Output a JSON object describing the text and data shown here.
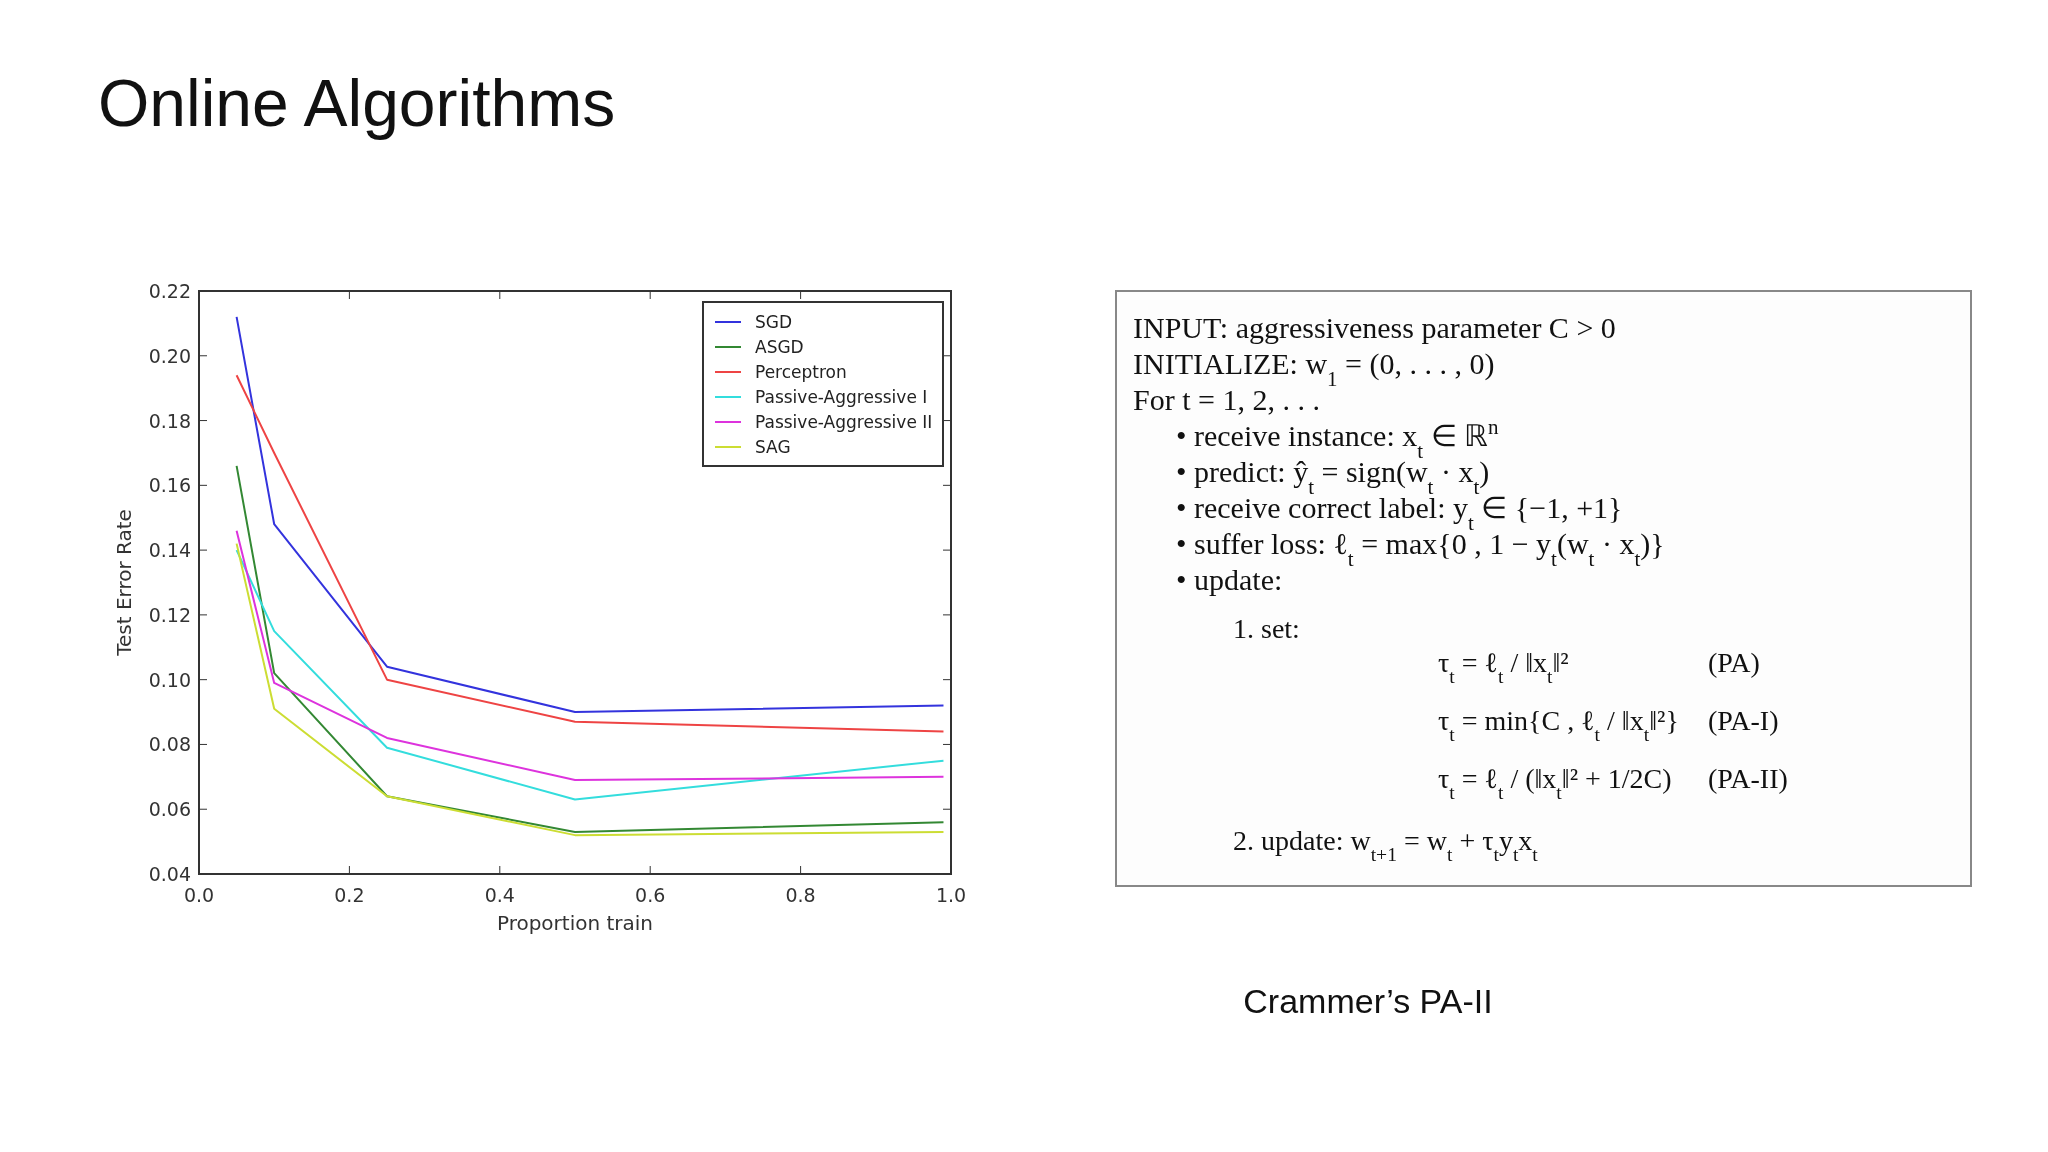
{
  "chart_data": [
    {
      "type": "line",
      "title": "Online Algorithms",
      "xlabel": "Proportion train",
      "ylabel": "Test Error Rate",
      "x": [
        0.05,
        0.1,
        0.25,
        0.5,
        0.99
      ],
      "xlim": [
        0.0,
        1.0
      ],
      "xticks": [
        {
          "value": 0,
          "label": "0.0"
        },
        0.2,
        0.4,
        0.6,
        0.8,
        {
          "value": 1,
          "label": "1.0"
        }
      ],
      "ylim": [
        0.04,
        0.22
      ],
      "yticks": [
        0.04,
        0.06,
        0.08,
        {
          "value": 0.1,
          "label": "0.10"
        },
        0.12,
        0.14,
        0.16,
        0.18,
        {
          "value": 0.2,
          "label": "0.20"
        },
        0.22
      ],
      "grid": false,
      "legend": "top right",
      "marker": "none",
      "line_style": "solid",
      "series": [
        {
          "name": "SGD",
          "color": "#3333dd",
          "values": [
            0.212,
            0.148,
            0.104,
            0.09,
            0.092
          ]
        },
        {
          "name": "ASGD",
          "color": "#338833",
          "values": [
            0.166,
            0.102,
            0.064,
            0.053,
            0.056
          ]
        },
        {
          "name": "Perceptron",
          "color": "#ee4444",
          "values": [
            0.194,
            0.17,
            0.1,
            0.087,
            0.084
          ]
        },
        {
          "name": "Passive-Aggressive I",
          "color": "#33dddd",
          "values": [
            0.14,
            0.115,
            0.079,
            0.063,
            0.075
          ]
        },
        {
          "name": "Passive-Aggressive II",
          "color": "#dd33dd",
          "values": [
            0.146,
            0.099,
            0.082,
            0.069,
            0.07
          ]
        },
        {
          "name": "SAG",
          "color": "#ccdd33",
          "values": [
            0.142,
            0.091,
            0.064,
            0.052,
            0.053
          ]
        }
      ]
    },
    {
      "type": "other",
      "annotations": [
        "INPUT: aggressiveness parameter C > 0",
        "INITIALIZE: w$_{1}$ = (0, . . . , 0)",
        "For   t = 1, 2, . . .",
        "• receive instance: x$_{t}$ ∈ ℝ$^{n}$",
        "• predict: ŷ$_{t}$ = sign(w$_{t}$ · x$_{t}$)",
        "• receive correct label: y$_{t}$ ∈ {−1, +1}",
        "• suffer loss: ℓ$_{t}$ = max{0 , 1 − y$_{t}$(w$_{t}$ · x$_{t}$)}",
        "• update:",
        "1.  set:",
        "τ$_{t}$ = ℓ$_{t}$ / ‖x$_{t}$‖²",
        "(PA)",
        "τ$_{t}$ = min{C , ℓ$_{t}$ / ‖x$_{t}$‖²}",
        "(PA-I)",
        "τ$_{t}$ = ℓ$_{t}$ / (‖x$_{t}$‖² + 1/2C)",
        "(PA-II)",
        "2.  update:   w$_{t+1}$ = w$_{t}$ + τ$_{t}$y$_{t}$x$_{t}$",
        "Crammer’s PA-II"
      ]
    }
  ]
}
